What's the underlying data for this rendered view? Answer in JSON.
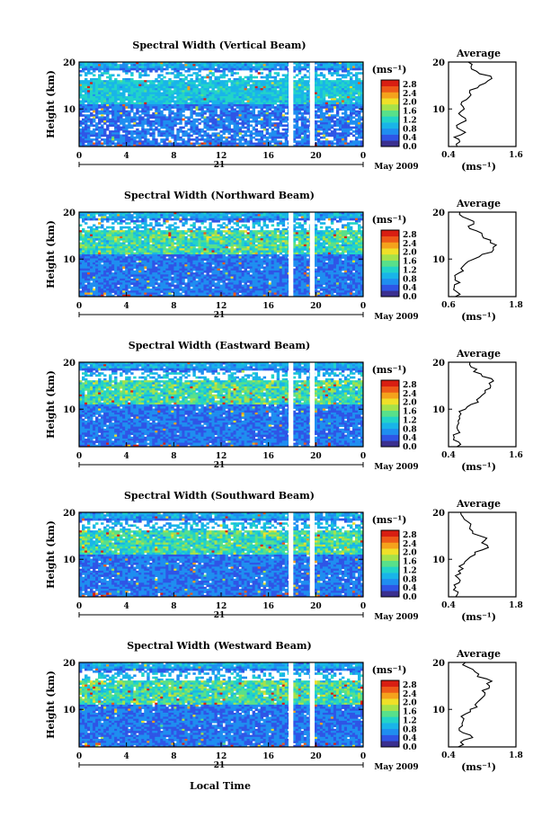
{
  "figure": {
    "xlabel": "Local Time",
    "date_label": "May 2009",
    "day_label": "21",
    "cbar_unit": "(ms⁻¹)",
    "avg_title": "Average",
    "avg_xlabel": "(ms⁻¹)",
    "ylabel": "Height (km)"
  },
  "colors": {
    "scale": [
      "#3a2f8f",
      "#2f55e6",
      "#1f8ef0",
      "#19b5e8",
      "#22d4c8",
      "#58e08a",
      "#a6e24a",
      "#f0e028",
      "#f5a21c",
      "#ee5a18",
      "#d81e12"
    ],
    "blank": "#ffffff"
  },
  "chart_data": [
    {
      "type": "heatmap",
      "title": "Spectral Width (Vertical Beam)",
      "x_ticks": [
        "0",
        "4",
        "8",
        "12",
        "16",
        "20",
        "0"
      ],
      "y_ticks": [
        "20",
        "10"
      ],
      "xlim": [
        0,
        24
      ],
      "ylim": [
        2,
        20
      ],
      "colorbar": {
        "ticks": [
          "2.8",
          "2.4",
          "2.0",
          "1.6",
          "1.2",
          "0.8",
          "0.4",
          "0.0"
        ],
        "range": [
          0,
          3.0
        ]
      },
      "gaps_hours": [
        [
          17.7,
          18.1
        ],
        [
          19.5,
          19.9
        ]
      ],
      "average": {
        "xticks": [
          "0.4",
          "1.6"
        ],
        "xlim": [
          0.4,
          1.6
        ],
        "profile": [
          [
            2,
            0.55
          ],
          [
            3,
            0.6
          ],
          [
            4,
            0.5
          ],
          [
            5,
            0.7
          ],
          [
            6,
            0.55
          ],
          [
            7,
            0.62
          ],
          [
            8,
            0.7
          ],
          [
            9,
            0.58
          ],
          [
            10,
            0.68
          ],
          [
            11,
            0.62
          ],
          [
            12,
            0.72
          ],
          [
            13,
            0.8
          ],
          [
            14,
            0.78
          ],
          [
            15,
            0.95
          ],
          [
            16,
            1.1
          ],
          [
            17,
            1.15
          ],
          [
            18,
            0.9
          ],
          [
            19,
            0.8
          ],
          [
            20,
            0.75
          ]
        ]
      }
    },
    {
      "type": "heatmap",
      "title": "Spectral Width (Northward Beam)",
      "x_ticks": [
        "0",
        "4",
        "8",
        "12",
        "16",
        "20",
        "0"
      ],
      "y_ticks": [
        "20",
        "10"
      ],
      "xlim": [
        0,
        24
      ],
      "ylim": [
        2,
        20
      ],
      "colorbar": {
        "ticks": [
          "2.8",
          "2.4",
          "2.0",
          "1.6",
          "1.2",
          "0.8",
          "0.4",
          "0.0"
        ],
        "range": [
          0,
          3.0
        ]
      },
      "gaps_hours": [
        [
          17.7,
          18.1
        ],
        [
          19.5,
          19.9
        ]
      ],
      "average": {
        "xticks": [
          "0.6",
          "1.8"
        ],
        "xlim": [
          0.6,
          1.8
        ],
        "profile": [
          [
            2,
            0.72
          ],
          [
            3,
            0.75
          ],
          [
            4,
            0.7
          ],
          [
            5,
            0.8
          ],
          [
            6,
            0.72
          ],
          [
            7,
            0.78
          ],
          [
            8,
            0.82
          ],
          [
            9,
            0.9
          ],
          [
            10,
            1.05
          ],
          [
            11,
            1.2
          ],
          [
            12,
            1.4
          ],
          [
            13,
            1.45
          ],
          [
            14,
            1.35
          ],
          [
            15,
            1.2
          ],
          [
            16,
            1.1
          ],
          [
            17,
            0.95
          ],
          [
            18,
            1.05
          ],
          [
            19,
            0.85
          ],
          [
            20,
            0.8
          ]
        ]
      }
    },
    {
      "type": "heatmap",
      "title": "Spectral Width (Eastward Beam)",
      "x_ticks": [
        "0",
        "4",
        "8",
        "12",
        "16",
        "20",
        "0"
      ],
      "y_ticks": [
        "20",
        "10"
      ],
      "xlim": [
        0,
        24
      ],
      "ylim": [
        2,
        20
      ],
      "colorbar": {
        "ticks": [
          "2.8",
          "2.4",
          "2.0",
          "1.6",
          "1.2",
          "0.8",
          "0.4",
          "0.0"
        ],
        "range": [
          0,
          3.0
        ]
      },
      "gaps_hours": [
        [
          17.7,
          18.1
        ],
        [
          19.5,
          19.9
        ]
      ],
      "average": {
        "xticks": [
          "0.4",
          "1.6"
        ],
        "xlim": [
          0.4,
          1.6
        ],
        "profile": [
          [
            2,
            0.55
          ],
          [
            3,
            0.58
          ],
          [
            4,
            0.5
          ],
          [
            5,
            0.6
          ],
          [
            6,
            0.55
          ],
          [
            7,
            0.58
          ],
          [
            8,
            0.6
          ],
          [
            9,
            0.62
          ],
          [
            10,
            0.7
          ],
          [
            11,
            0.8
          ],
          [
            12,
            0.9
          ],
          [
            13,
            1.0
          ],
          [
            14,
            1.05
          ],
          [
            15,
            1.15
          ],
          [
            16,
            1.2
          ],
          [
            17,
            1.0
          ],
          [
            18,
            0.85
          ],
          [
            19,
            0.8
          ],
          [
            20,
            0.78
          ]
        ]
      }
    },
    {
      "type": "heatmap",
      "title": "Spectral Width (Southward Beam)",
      "x_ticks": [
        "0",
        "4",
        "8",
        "12",
        "16",
        "20",
        "0"
      ],
      "y_ticks": [
        "20",
        "10"
      ],
      "xlim": [
        0,
        24
      ],
      "ylim": [
        2,
        20
      ],
      "colorbar": {
        "ticks": [
          "2.8",
          "2.4",
          "2.0",
          "1.6",
          "1.2",
          "0.8",
          "0.4",
          "0.0"
        ],
        "range": [
          0,
          3.0
        ]
      },
      "gaps_hours": [
        [
          17.7,
          18.1
        ],
        [
          19.5,
          19.9
        ]
      ],
      "average": {
        "xticks": [
          "0.4",
          "1.8"
        ],
        "xlim": [
          0.4,
          1.8
        ],
        "profile": [
          [
            2,
            0.55
          ],
          [
            3,
            0.6
          ],
          [
            4,
            0.55
          ],
          [
            5,
            0.62
          ],
          [
            6,
            0.6
          ],
          [
            7,
            0.65
          ],
          [
            8,
            0.7
          ],
          [
            9,
            0.72
          ],
          [
            10,
            0.8
          ],
          [
            11,
            0.95
          ],
          [
            12,
            1.1
          ],
          [
            13,
            1.2
          ],
          [
            14,
            1.15
          ],
          [
            15,
            1.05
          ],
          [
            16,
            0.9
          ],
          [
            17,
            0.85
          ],
          [
            18,
            0.8
          ],
          [
            19,
            0.7
          ],
          [
            20,
            0.65
          ]
        ]
      }
    },
    {
      "type": "heatmap",
      "title": "Spectral Width (Westward Beam)",
      "x_ticks": [
        "0",
        "4",
        "8",
        "12",
        "16",
        "20",
        "0"
      ],
      "y_ticks": [
        "20",
        "10"
      ],
      "xlim": [
        0,
        24
      ],
      "ylim": [
        2,
        20
      ],
      "colorbar": {
        "ticks": [
          "2.8",
          "2.4",
          "2.0",
          "1.6",
          "1.2",
          "0.8",
          "0.4",
          "0.0"
        ],
        "range": [
          0,
          3.0
        ]
      },
      "gaps_hours": [
        [
          17.7,
          18.1
        ],
        [
          19.5,
          19.9
        ]
      ],
      "average": {
        "xticks": [
          "0.4",
          "1.8"
        ],
        "xlim": [
          0.4,
          1.8
        ],
        "profile": [
          [
            2,
            0.6
          ],
          [
            3,
            0.65
          ],
          [
            4,
            0.9
          ],
          [
            5,
            0.7
          ],
          [
            6,
            0.62
          ],
          [
            7,
            0.68
          ],
          [
            8,
            0.72
          ],
          [
            9,
            0.75
          ],
          [
            10,
            0.85
          ],
          [
            11,
            0.95
          ],
          [
            12,
            1.05
          ],
          [
            13,
            1.15
          ],
          [
            14,
            1.1
          ],
          [
            15,
            1.25
          ],
          [
            16,
            1.3
          ],
          [
            17,
            1.0
          ],
          [
            18,
            0.95
          ],
          [
            19,
            0.8
          ],
          [
            20,
            0.75
          ]
        ]
      }
    }
  ]
}
